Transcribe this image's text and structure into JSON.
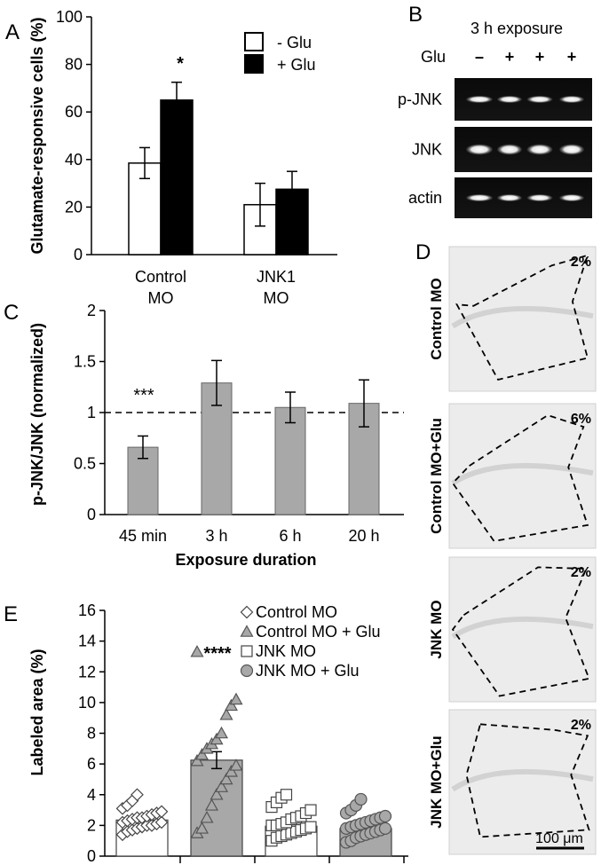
{
  "chart_data": [
    {
      "panel": "A",
      "type": "bar",
      "ylabel": "Glutamate-responsive cells (%)",
      "ylim": [
        0,
        100
      ],
      "yticks": [
        0,
        20,
        40,
        60,
        80,
        100
      ],
      "categories": [
        "Control MO",
        "JNK1 MO"
      ],
      "category_lines": [
        [
          "Control",
          "MO"
        ],
        [
          "JNK1",
          "MO"
        ]
      ],
      "series": [
        {
          "name": "- Glu",
          "fill": "#ffffff",
          "values": [
            38.5,
            21.0
          ],
          "errors": [
            6.5,
            9.0
          ]
        },
        {
          "name": "+ Glu",
          "fill": "#000000",
          "values": [
            65.0,
            27.5
          ],
          "errors": [
            7.5,
            7.5
          ]
        }
      ],
      "annotations": [
        "*"
      ]
    },
    {
      "panel": "C",
      "type": "bar",
      "xlabel": "Exposure duration",
      "ylabel": "p-JNK/JNK (normalized)",
      "ylim": [
        0,
        2
      ],
      "yticks": [
        "0",
        "0.5",
        "1",
        "1.5",
        "2"
      ],
      "categories": [
        "45 min",
        "3 h",
        "6 h",
        "20 h"
      ],
      "values": [
        0.66,
        1.29,
        1.05,
        1.09
      ],
      "errors": [
        0.11,
        0.22,
        0.15,
        0.23
      ],
      "reference_line": 1,
      "bar_color": "#a8a8a8",
      "annotations": [
        "***"
      ]
    },
    {
      "panel": "E",
      "type": "bar",
      "ylabel": "Labeled area (%)",
      "ylim": [
        0,
        16
      ],
      "yticks": [
        0,
        2,
        4,
        6,
        8,
        10,
        12,
        14,
        16
      ],
      "categories": [
        "Control MO",
        "Control MO + Glu",
        "JNK MO",
        "JNK MO + Glu"
      ],
      "values": [
        2.35,
        6.25,
        1.95,
        1.8
      ],
      "errors": [
        0.25,
        0.55,
        0.25,
        0.2
      ],
      "bar_fills": [
        "#ffffff",
        "#a8a8a8",
        "#ffffff",
        "#a8a8a8"
      ],
      "n_labels": [
        "22",
        "19",
        "22",
        "22"
      ],
      "markers": [
        "diamond",
        "triangle",
        "square",
        "circle"
      ],
      "marker_fills": [
        "#ffffff",
        "#a8a8a8",
        "#ffffff",
        "#a8a8a8"
      ],
      "points": [
        [
          1.4,
          1.6,
          1.7,
          1.8,
          1.9,
          2.0,
          2.0,
          2.1,
          2.2,
          2.2,
          2.3,
          2.4,
          2.5,
          2.5,
          2.6,
          2.7,
          2.8,
          2.9,
          3.1,
          3.3,
          3.6,
          4.0
        ],
        [
          1.5,
          1.8,
          2.5,
          3.3,
          4.0,
          4.5,
          5.0,
          5.5,
          5.9,
          6.2,
          6.6,
          7.0,
          7.3,
          7.6,
          8.0,
          9.2,
          9.8,
          10.2,
          13.3
        ],
        [
          1.0,
          1.2,
          1.3,
          1.4,
          1.5,
          1.6,
          1.7,
          1.8,
          1.9,
          2.0,
          2.0,
          2.1,
          2.2,
          2.4,
          2.5,
          2.6,
          2.8,
          3.0,
          3.2,
          3.5,
          3.8,
          4.0
        ],
        [
          0.9,
          1.0,
          1.2,
          1.3,
          1.4,
          1.5,
          1.6,
          1.7,
          1.8,
          1.8,
          1.9,
          2.0,
          2.1,
          2.2,
          2.3,
          2.4,
          2.5,
          2.6,
          2.8,
          3.0,
          3.3,
          3.7
        ]
      ],
      "annotations": [
        "****"
      ]
    }
  ],
  "panel_b": {
    "title": "3 h exposure",
    "glu_label": "Glu",
    "lane_treatments": [
      "–",
      "+",
      "+",
      "+"
    ],
    "rows": [
      "p-JNK",
      "JNK",
      "actin"
    ]
  },
  "panel_d": {
    "rows": [
      {
        "label": "Control MO",
        "percent": "2%"
      },
      {
        "label": "Control MO+Glu",
        "percent": "6%"
      },
      {
        "label": "JNK MO",
        "percent": "2%"
      },
      {
        "label": "JNK MO+Glu",
        "percent": "2%"
      }
    ],
    "scale_bar": "100 μm"
  },
  "panel_letters": [
    "A",
    "B",
    "C",
    "D",
    "E"
  ]
}
